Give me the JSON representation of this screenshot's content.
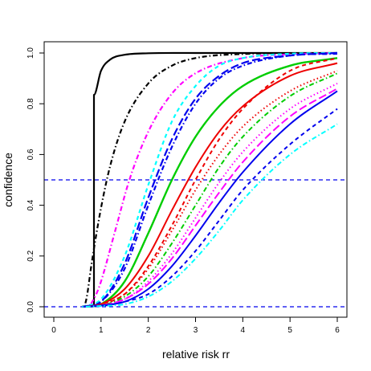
{
  "chart_data": {
    "type": "line",
    "title": "",
    "xlabel": "relative risk rr",
    "ylabel": "confidence",
    "xlim": [
      0,
      6
    ],
    "ylim": [
      0,
      1
    ],
    "x_ticks": [
      "0",
      "1",
      "2",
      "3",
      "4",
      "5",
      "6"
    ],
    "y_ticks": [
      "0.0",
      "0.2",
      "0.4",
      "0.6",
      "0.8",
      "1.0"
    ],
    "grid": false,
    "legend": "none",
    "reference_lines": [
      {
        "axis": "y",
        "value": 0.0,
        "color": "#0000ee",
        "dash": "dashed"
      },
      {
        "axis": "y",
        "value": 0.5,
        "color": "#0000ee",
        "dash": "dashed"
      }
    ],
    "series": [
      {
        "color": "#000000",
        "dash": "solid",
        "width": 2.2,
        "x": [
          0.85,
          0.85,
          1.0,
          1.2,
          1.5,
          2.0,
          3.0,
          6.0
        ],
        "y": [
          0.0,
          0.835,
          0.93,
          0.975,
          0.993,
          0.999,
          1.0,
          1.0
        ]
      },
      {
        "color": "#000000",
        "dash": "dotdash",
        "width": 2.2,
        "x": [
          0.65,
          0.7,
          0.8,
          1.0,
          1.2,
          1.5,
          2.0,
          2.5,
          3.0,
          4.0,
          6.0
        ],
        "y": [
          0.0,
          0.04,
          0.17,
          0.39,
          0.56,
          0.73,
          0.88,
          0.95,
          0.98,
          0.996,
          1.0
        ]
      },
      {
        "color": "#ff00ff",
        "dash": "dotdash",
        "width": 2.2,
        "x": [
          0.75,
          0.9,
          1.0,
          1.3,
          1.6,
          2.0,
          2.5,
          3.0,
          4.0,
          5.0,
          6.0
        ],
        "y": [
          0.0,
          0.05,
          0.1,
          0.3,
          0.5,
          0.69,
          0.84,
          0.92,
          0.98,
          0.995,
          1.0
        ]
      },
      {
        "color": "#00ffff",
        "dash": "dashed",
        "width": 2.2,
        "x": [
          0.6,
          1.0,
          1.5,
          2.0,
          2.5,
          3.0,
          3.5,
          4.0,
          5.0,
          6.0
        ],
        "y": [
          0.0,
          0.03,
          0.2,
          0.48,
          0.73,
          0.87,
          0.95,
          0.98,
          0.997,
          1.0
        ]
      },
      {
        "color": "#0000ee",
        "dash": "longdash",
        "width": 2.2,
        "x": [
          0.6,
          1.0,
          1.5,
          2.0,
          2.5,
          3.0,
          3.5,
          4.0,
          5.0,
          6.0
        ],
        "y": [
          0.0,
          0.02,
          0.17,
          0.43,
          0.66,
          0.82,
          0.91,
          0.96,
          0.99,
          1.0
        ]
      },
      {
        "color": "#0000ee",
        "dash": "dotdash",
        "width": 2.2,
        "x": [
          0.6,
          1.0,
          1.5,
          2.0,
          2.5,
          3.0,
          3.5,
          4.0,
          5.0,
          6.0
        ],
        "y": [
          0.0,
          0.02,
          0.15,
          0.4,
          0.63,
          0.8,
          0.9,
          0.95,
          0.99,
          0.997
        ]
      },
      {
        "color": "#00cd00",
        "dash": "solid",
        "width": 2.4,
        "x": [
          0.6,
          1.0,
          1.5,
          2.0,
          2.5,
          3.0,
          3.5,
          4.0,
          5.0,
          6.0
        ],
        "y": [
          0.0,
          0.01,
          0.1,
          0.29,
          0.5,
          0.67,
          0.79,
          0.87,
          0.95,
          0.98
        ]
      },
      {
        "color": "#ee0000",
        "dash": "solid",
        "width": 2.0,
        "x": [
          0.6,
          1.0,
          1.5,
          2.0,
          2.5,
          3.0,
          3.5,
          4.0,
          5.0,
          6.0
        ],
        "y": [
          0.0,
          0.01,
          0.07,
          0.2,
          0.38,
          0.55,
          0.69,
          0.79,
          0.91,
          0.96
        ]
      },
      {
        "color": "#ee0000",
        "dash": "dotted",
        "width": 2.0,
        "x": [
          0.6,
          1.0,
          1.5,
          2.0,
          2.5,
          3.0,
          3.5,
          4.0,
          5.0,
          6.0
        ],
        "y": [
          0.0,
          0.01,
          0.05,
          0.15,
          0.3,
          0.46,
          0.6,
          0.71,
          0.85,
          0.93
        ]
      },
      {
        "color": "#ee0000",
        "dash": "dashed",
        "width": 2.0,
        "x": [
          0.6,
          1.0,
          1.5,
          2.0,
          2.5,
          3.0,
          3.5,
          4.0,
          5.0,
          6.0
        ],
        "y": [
          0.0,
          0.01,
          0.05,
          0.16,
          0.32,
          0.5,
          0.66,
          0.78,
          0.93,
          0.98
        ]
      },
      {
        "color": "#00cd00",
        "dash": "dotdash",
        "width": 2.0,
        "x": [
          0.6,
          1.0,
          1.5,
          2.0,
          2.5,
          3.0,
          3.5,
          4.0,
          5.0,
          6.0
        ],
        "y": [
          0.0,
          0.005,
          0.04,
          0.12,
          0.25,
          0.4,
          0.55,
          0.67,
          0.83,
          0.92
        ]
      },
      {
        "color": "#ff00ff",
        "dash": "dotted",
        "width": 2.0,
        "x": [
          0.6,
          1.0,
          1.5,
          2.0,
          2.5,
          3.0,
          3.5,
          4.0,
          5.0,
          6.0
        ],
        "y": [
          0.0,
          0.005,
          0.03,
          0.1,
          0.21,
          0.35,
          0.49,
          0.61,
          0.78,
          0.88
        ]
      },
      {
        "color": "#ff00ff",
        "dash": "longdash",
        "width": 2.0,
        "x": [
          0.6,
          1.0,
          1.5,
          2.0,
          2.5,
          3.0,
          3.5,
          4.0,
          5.0,
          6.0
        ],
        "y": [
          0.0,
          0.005,
          0.03,
          0.09,
          0.19,
          0.32,
          0.45,
          0.57,
          0.75,
          0.86
        ]
      },
      {
        "color": "#0000ee",
        "dash": "solid",
        "width": 2.0,
        "x": [
          0.6,
          1.0,
          1.5,
          2.0,
          2.5,
          3.0,
          3.5,
          4.0,
          5.0,
          6.0
        ],
        "y": [
          0.0,
          0.005,
          0.02,
          0.07,
          0.16,
          0.28,
          0.41,
          0.53,
          0.72,
          0.85
        ]
      },
      {
        "color": "#0000ee",
        "dash": "dashed",
        "width": 2.0,
        "x": [
          0.6,
          1.0,
          1.5,
          2.0,
          2.5,
          3.0,
          3.5,
          4.0,
          5.0,
          6.0
        ],
        "y": [
          0.0,
          0.003,
          0.02,
          0.05,
          0.12,
          0.22,
          0.34,
          0.46,
          0.64,
          0.78
        ]
      },
      {
        "color": "#00ffff",
        "dash": "dotdash",
        "width": 2.0,
        "x": [
          0.6,
          1.0,
          1.5,
          2.0,
          2.5,
          3.0,
          3.5,
          4.0,
          5.0,
          6.0
        ],
        "y": [
          0.0,
          0.003,
          0.01,
          0.04,
          0.1,
          0.19,
          0.3,
          0.42,
          0.6,
          0.72
        ]
      }
    ]
  }
}
